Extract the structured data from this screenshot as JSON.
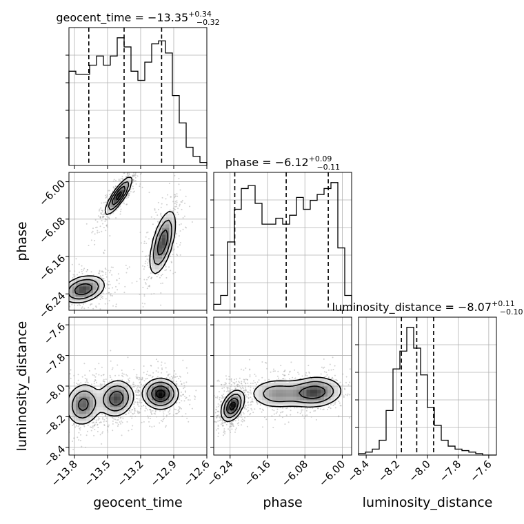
{
  "chart_data": {
    "type": "corner",
    "parameters": [
      {
        "name": "geocent_time",
        "title": "geocent_time = −13.35",
        "upper": "+0.34",
        "lower": "−0.32",
        "median": -13.35,
        "q_low": -13.67,
        "q_high": -13.01,
        "range": [
          -13.85,
          -12.6
        ],
        "ticks": [
          -13.8,
          -13.5,
          -13.2,
          -12.9,
          -12.6
        ],
        "tick_labels": [
          "−13.8",
          "−13.5",
          "−13.2",
          "−12.9",
          "−12.6"
        ],
        "hist_counts": [
          62,
          60,
          60,
          66,
          72,
          66,
          72,
          84,
          78,
          62,
          56,
          68,
          80,
          82,
          74,
          46,
          28,
          12,
          6,
          2
        ]
      },
      {
        "name": "phase",
        "title": "phase = −6.12",
        "upper": "+0.09",
        "lower": "−0.11",
        "median": -6.12,
        "q_low": -6.23,
        "q_high": -6.03,
        "range": [
          -6.275,
          -5.98
        ],
        "ticks": [
          -6.24,
          -6.16,
          -6.08,
          -6.0
        ],
        "tick_labels": [
          "−6.24",
          "−6.16",
          "−6.08",
          "−6.00"
        ],
        "hist_counts": [
          4,
          10,
          46,
          68,
          82,
          84,
          72,
          58,
          58,
          62,
          58,
          64,
          76,
          68,
          74,
          78,
          82,
          86,
          42,
          10
        ]
      },
      {
        "name": "luminosity_distance",
        "title": "luminosity_distance = −8.07",
        "upper": "+0.11",
        "lower": "−0.10",
        "median": -8.07,
        "q_low": -8.17,
        "q_high": -7.96,
        "range": [
          -8.45,
          -7.55
        ],
        "ticks": [
          -8.4,
          -8.2,
          -8.0,
          -7.8,
          -7.6
        ],
        "tick_labels": [
          "−8.4",
          "−8.2",
          "−8.0",
          "−7.8",
          "−7.6"
        ],
        "hist_counts": [
          1,
          2,
          4,
          10,
          30,
          58,
          70,
          86,
          72,
          54,
          32,
          20,
          10,
          6,
          4,
          3,
          2,
          1,
          0,
          0
        ]
      }
    ],
    "correlations": [
      {
        "x": "geocent_time",
        "y": "phase",
        "blobs": [
          {
            "cx": -13.4,
            "cy": -6.03,
            "sx": 0.06,
            "sy": 0.02,
            "rho": 0.85,
            "w": 1.0
          },
          {
            "cx": -13.0,
            "cy": -6.13,
            "sx": 0.06,
            "sy": 0.035,
            "rho": 0.6,
            "w": 0.8
          },
          {
            "cx": -13.72,
            "cy": -6.23,
            "sx": 0.1,
            "sy": 0.015,
            "rho": 0.3,
            "w": 0.8
          }
        ]
      },
      {
        "x": "geocent_time",
        "y": "luminosity_distance",
        "blobs": [
          {
            "cx": -13.02,
            "cy": -8.05,
            "sx": 0.08,
            "sy": 0.05,
            "rho": 0.0,
            "w": 1.0
          },
          {
            "cx": -13.42,
            "cy": -8.08,
            "sx": 0.08,
            "sy": 0.06,
            "rho": 0.1,
            "w": 0.8
          },
          {
            "cx": -13.72,
            "cy": -8.12,
            "sx": 0.08,
            "sy": 0.07,
            "rho": 0.1,
            "w": 0.7
          }
        ]
      },
      {
        "x": "phase",
        "y": "luminosity_distance",
        "blobs": [
          {
            "cx": -6.235,
            "cy": -8.13,
            "sx": 0.012,
            "sy": 0.05,
            "rho": 0.4,
            "w": 1.0
          },
          {
            "cx": -6.06,
            "cy": -8.04,
            "sx": 0.03,
            "sy": 0.05,
            "rho": 0.1,
            "w": 0.8
          },
          {
            "cx": -6.14,
            "cy": -8.05,
            "sx": 0.03,
            "sy": 0.05,
            "rho": 0.0,
            "w": 0.5
          }
        ]
      }
    ],
    "grid": true,
    "quantile_lines": "dashed black"
  }
}
